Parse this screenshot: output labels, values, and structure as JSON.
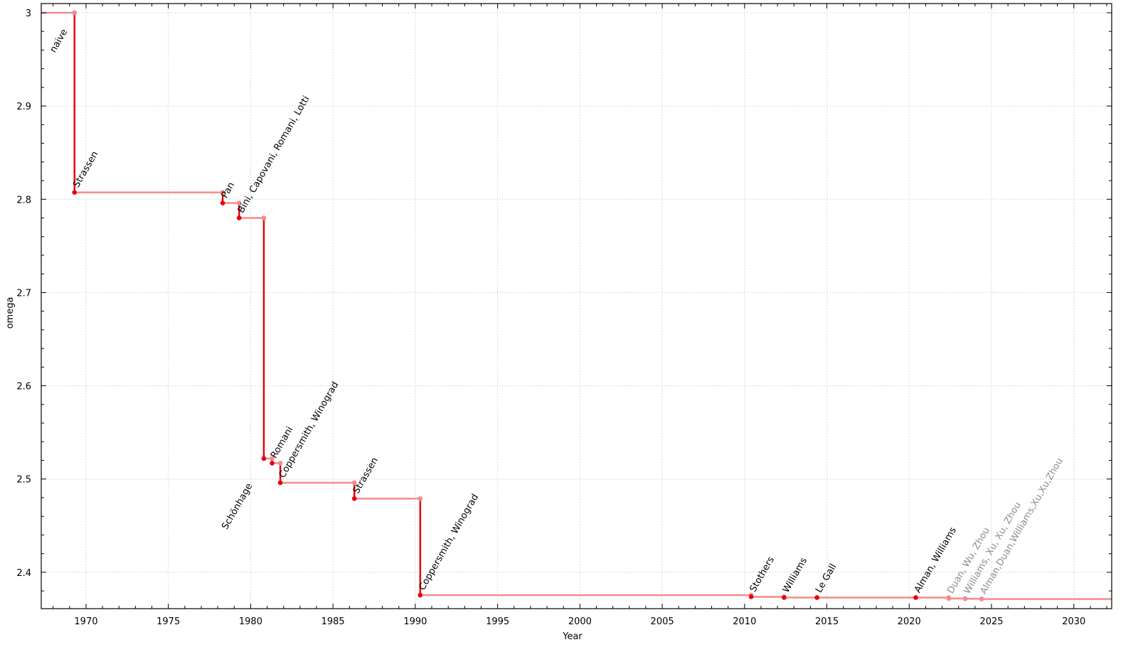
{
  "chart_data": {
    "type": "line",
    "step": true,
    "title": "",
    "xlabel": "Year",
    "ylabel": "omega",
    "xlim": [
      1967.28,
      2032.3
    ],
    "ylim": [
      2.361,
      3.0099
    ],
    "grid": true,
    "x_ticks": [
      1970,
      1975,
      1980,
      1985,
      1990,
      1995,
      2000,
      2005,
      2010,
      2015,
      2020,
      2025,
      2030
    ],
    "y_ticks": [
      2.4,
      2.5,
      2.6,
      2.7,
      2.8,
      2.9,
      3
    ],
    "y_tick_labels": [
      "2.4",
      "2.5",
      "2.6",
      "2.7",
      "2.8",
      "2.9",
      "3"
    ],
    "colors": {
      "vertical": "#e8000b",
      "horizontal": "#f58a8a",
      "point_new": "#e8000b",
      "point_prev": "#f58a8a",
      "label": "#000000",
      "label_recent": "#8c8c8c"
    },
    "points": [
      {
        "label": "naive",
        "x": 1969.3,
        "y": 3.0
      },
      {
        "label": "Strassen",
        "x": 1969.3,
        "y": 2.8074
      },
      {
        "label": "Pan",
        "x": 1978.3,
        "y": 2.796
      },
      {
        "label": "Bini, Capovani, Romani, Lotti",
        "x": 1979.3,
        "y": 2.78
      },
      {
        "label": "Schönhage",
        "x": 1980.8,
        "y": 2.522
      },
      {
        "label": "Romani",
        "x": 1981.3,
        "y": 2.517
      },
      {
        "label": "Coppersmith, Winograd",
        "x": 1981.8,
        "y": 2.496
      },
      {
        "label": "Strassen",
        "x": 1986.3,
        "y": 2.479
      },
      {
        "label": "Coppersmith, Winograd",
        "x": 1990.3,
        "y": 2.3755
      },
      {
        "label": "Stothers",
        "x": 2010.4,
        "y": 2.3737
      },
      {
        "label": "Williams",
        "x": 2012.4,
        "y": 2.3729
      },
      {
        "label": "Le Gall",
        "x": 2014.4,
        "y": 2.37286
      },
      {
        "label": "Alman, Williams",
        "x": 2020.4,
        "y": 2.37286
      },
      {
        "label": "Duan, Wu, Zhou",
        "x": 2022.4,
        "y": 2.37188
      },
      {
        "label": "Williams, Xu, Xu, Zhou",
        "x": 2023.4,
        "y": 2.37155
      },
      {
        "label": "Alman,Duan,Williams,Xu,Xu,Zhou",
        "x": 2024.4,
        "y": 2.37134
      }
    ]
  }
}
